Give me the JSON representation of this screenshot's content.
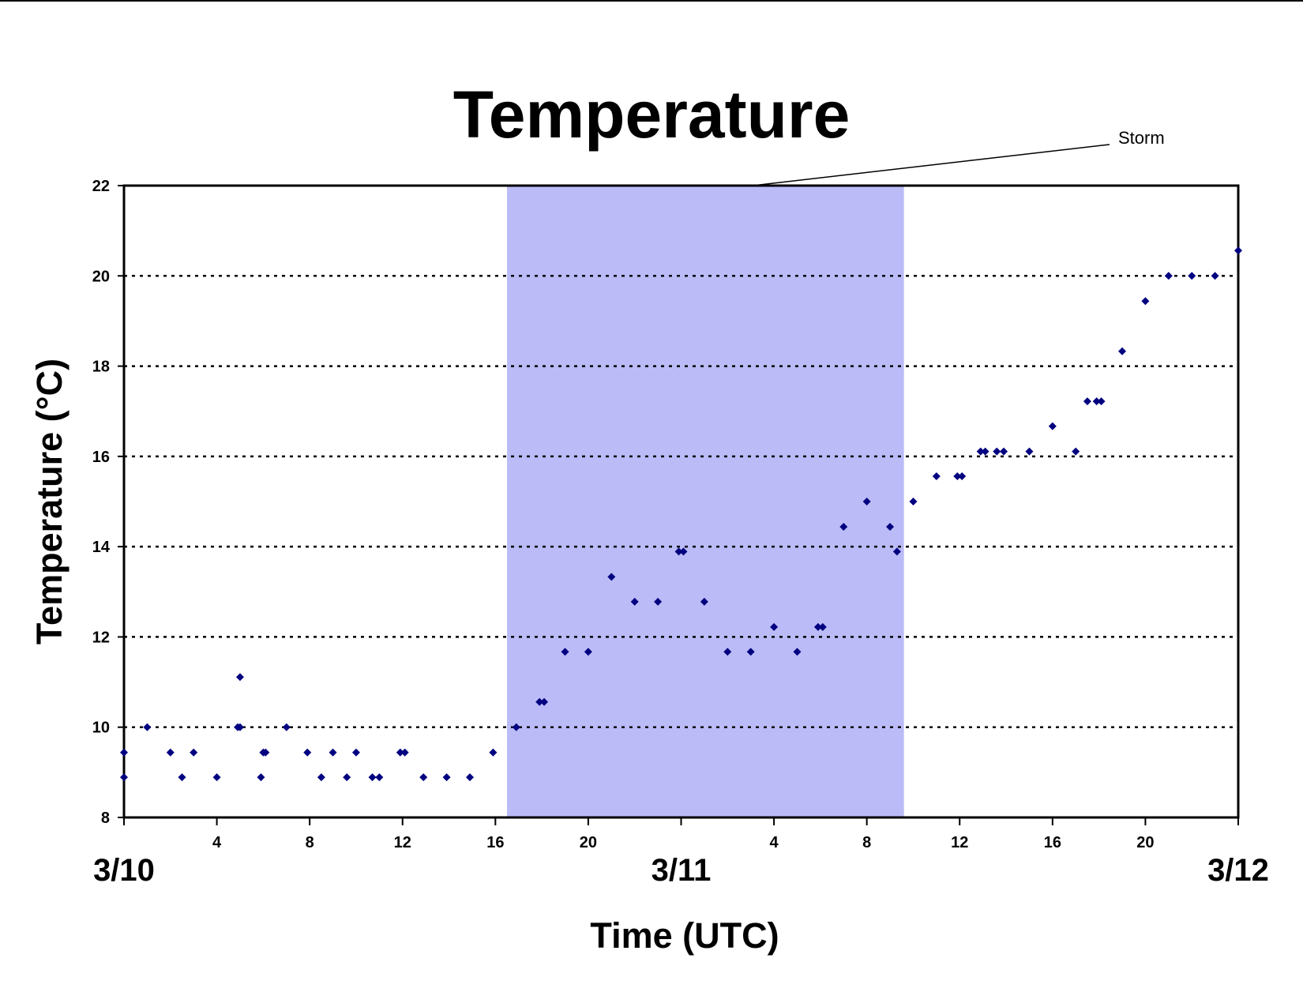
{
  "chart_data": {
    "type": "scatter",
    "title": "Temperature",
    "xlabel": "Time (UTC)",
    "ylabel": "Temperature (°C)",
    "ylim": [
      8,
      22
    ],
    "xlim": [
      "3/10 00:00",
      "3/12 00:00"
    ],
    "y_ticks": [
      "8",
      "10",
      "12",
      "14",
      "16",
      "18",
      "20",
      "22"
    ],
    "x_tick_hours": [
      0,
      4,
      8,
      12,
      16,
      20,
      24,
      28,
      32,
      36,
      40,
      44,
      48
    ],
    "x_tick_labels": [
      "",
      "4",
      "8",
      "12",
      "16",
      "20",
      "",
      "4",
      "8",
      "12",
      "16",
      "20",
      ""
    ],
    "date_labels": [
      {
        "text": "3/10",
        "hour": 0
      },
      {
        "text": "3/11",
        "hour": 24
      },
      {
        "text": "3/12",
        "hour": 48
      }
    ],
    "grid": "dotted horizontal",
    "marker_color": "#000080",
    "shading": {
      "label": "Storm",
      "from_hour": 16.5,
      "to_hour": 33.6,
      "color": "#bbbbf8"
    },
    "points": [
      [
        0,
        9.44
      ],
      [
        0,
        8.89
      ],
      [
        1,
        10.0
      ],
      [
        2,
        9.44
      ],
      [
        2.5,
        8.89
      ],
      [
        3,
        9.44
      ],
      [
        4,
        8.89
      ],
      [
        4.9,
        10.0
      ],
      [
        5,
        11.11
      ],
      [
        5,
        10.0
      ],
      [
        5.9,
        8.89
      ],
      [
        6,
        9.44
      ],
      [
        6.1,
        9.44
      ],
      [
        7,
        10.0
      ],
      [
        7.9,
        9.44
      ],
      [
        8.5,
        8.89
      ],
      [
        9,
        9.44
      ],
      [
        9.6,
        8.89
      ],
      [
        10,
        9.44
      ],
      [
        10.7,
        8.89
      ],
      [
        11,
        8.89
      ],
      [
        11.9,
        9.44
      ],
      [
        12.1,
        9.44
      ],
      [
        12.9,
        8.89
      ],
      [
        13.9,
        8.89
      ],
      [
        14.9,
        8.89
      ],
      [
        15.9,
        9.44
      ],
      [
        16.9,
        10.0
      ],
      [
        17.9,
        10.56
      ],
      [
        18.1,
        10.56
      ],
      [
        19,
        11.67
      ],
      [
        20,
        11.67
      ],
      [
        21,
        13.33
      ],
      [
        22,
        12.78
      ],
      [
        23,
        12.78
      ],
      [
        23.9,
        13.89
      ],
      [
        24.1,
        13.89
      ],
      [
        25,
        12.78
      ],
      [
        26,
        11.67
      ],
      [
        27,
        11.67
      ],
      [
        28,
        12.22
      ],
      [
        29,
        11.67
      ],
      [
        29.9,
        12.22
      ],
      [
        30.1,
        12.22
      ],
      [
        31,
        14.44
      ],
      [
        32,
        15.0
      ],
      [
        33,
        14.44
      ],
      [
        33.3,
        13.89
      ],
      [
        34,
        15.0
      ],
      [
        35,
        15.56
      ],
      [
        35.9,
        15.56
      ],
      [
        36.1,
        15.56
      ],
      [
        36.9,
        16.11
      ],
      [
        37.1,
        16.11
      ],
      [
        37.6,
        16.11
      ],
      [
        37.9,
        16.11
      ],
      [
        39,
        16.11
      ],
      [
        40,
        16.67
      ],
      [
        41,
        16.11
      ],
      [
        41.5,
        17.22
      ],
      [
        41.9,
        17.22
      ],
      [
        42.1,
        17.22
      ],
      [
        43,
        18.33
      ],
      [
        44,
        19.44
      ],
      [
        45,
        20.0
      ],
      [
        46,
        20.0
      ],
      [
        47,
        20.0
      ],
      [
        48,
        20.56
      ]
    ]
  }
}
